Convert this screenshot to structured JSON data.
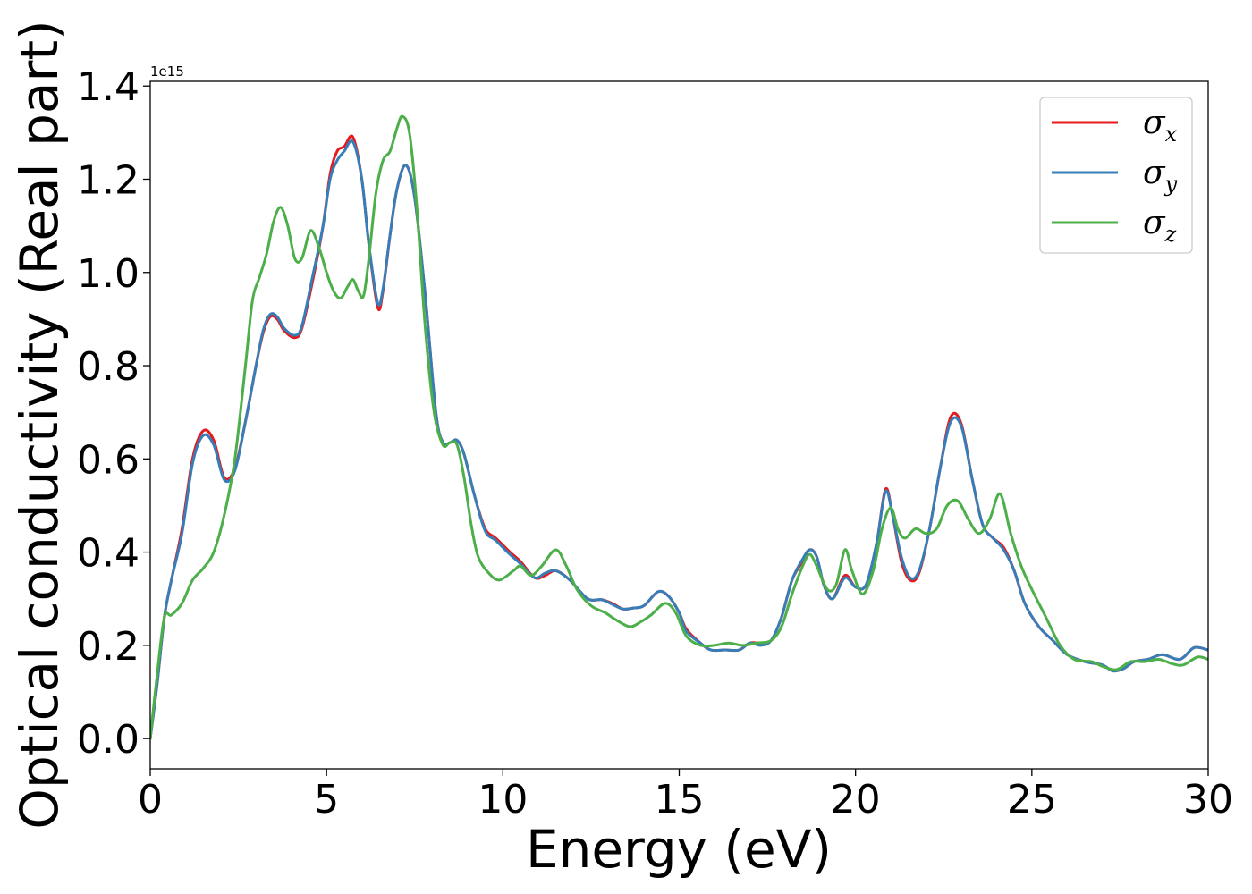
{
  "chart_data": {
    "type": "line",
    "xlabel": "Energy (eV)",
    "ylabel": "Optical conductivity (Real part)",
    "y_offset_text": "1e15",
    "xlim": [
      0,
      30
    ],
    "ylim": [
      -0.065,
      1.41
    ],
    "x_ticks": [
      0,
      5,
      10,
      15,
      20,
      25,
      30
    ],
    "y_ticks": [
      0.0,
      0.2,
      0.4,
      0.6,
      0.8,
      1.0,
      1.2,
      1.4
    ],
    "x_tick_labels": [
      "0",
      "5",
      "10",
      "15",
      "20",
      "25",
      "30"
    ],
    "y_tick_labels": [
      "0.0",
      "0.2",
      "0.4",
      "0.6",
      "0.8",
      "1.0",
      "1.2",
      "1.4"
    ],
    "legend_position": "upper right",
    "grid": false,
    "series": [
      {
        "name": "σx",
        "symbol": "σ",
        "sub": "x",
        "color": "#e41a1c",
        "points": [
          [
            0,
            0
          ],
          [
            0.2,
            0.12
          ],
          [
            0.4,
            0.26
          ],
          [
            0.6,
            0.34
          ],
          [
            0.9,
            0.45
          ],
          [
            1.2,
            0.6
          ],
          [
            1.5,
            0.66
          ],
          [
            1.8,
            0.64
          ],
          [
            2.1,
            0.56
          ],
          [
            2.4,
            0.58
          ],
          [
            2.7,
            0.68
          ],
          [
            3.0,
            0.8
          ],
          [
            3.2,
            0.87
          ],
          [
            3.4,
            0.905
          ],
          [
            3.6,
            0.9
          ],
          [
            3.8,
            0.875
          ],
          [
            4.1,
            0.86
          ],
          [
            4.3,
            0.88
          ],
          [
            4.6,
            0.98
          ],
          [
            4.9,
            1.1
          ],
          [
            5.1,
            1.21
          ],
          [
            5.3,
            1.26
          ],
          [
            5.5,
            1.27
          ],
          [
            5.75,
            1.29
          ],
          [
            6.0,
            1.2
          ],
          [
            6.2,
            1.06
          ],
          [
            6.45,
            0.925
          ],
          [
            6.6,
            0.96
          ],
          [
            6.8,
            1.08
          ],
          [
            7.0,
            1.18
          ],
          [
            7.25,
            1.23
          ],
          [
            7.5,
            1.16
          ],
          [
            7.8,
            0.95
          ],
          [
            8.1,
            0.7
          ],
          [
            8.3,
            0.635
          ],
          [
            8.5,
            0.635
          ],
          [
            8.7,
            0.64
          ],
          [
            8.9,
            0.61
          ],
          [
            9.2,
            0.52
          ],
          [
            9.5,
            0.45
          ],
          [
            9.8,
            0.43
          ],
          [
            10.2,
            0.4
          ],
          [
            10.5,
            0.38
          ],
          [
            10.9,
            0.345
          ],
          [
            11.2,
            0.35
          ],
          [
            11.5,
            0.36
          ],
          [
            11.9,
            0.34
          ],
          [
            12.4,
            0.3
          ],
          [
            12.8,
            0.298
          ],
          [
            13.1,
            0.29
          ],
          [
            13.4,
            0.278
          ],
          [
            13.7,
            0.28
          ],
          [
            14.0,
            0.285
          ],
          [
            14.4,
            0.315
          ],
          [
            14.7,
            0.305
          ],
          [
            15.0,
            0.27
          ],
          [
            15.2,
            0.235
          ],
          [
            15.6,
            0.205
          ],
          [
            15.9,
            0.19
          ],
          [
            16.3,
            0.19
          ],
          [
            16.7,
            0.19
          ],
          [
            17.0,
            0.205
          ],
          [
            17.3,
            0.205
          ],
          [
            17.6,
            0.21
          ],
          [
            17.9,
            0.26
          ],
          [
            18.2,
            0.34
          ],
          [
            18.5,
            0.38
          ],
          [
            18.7,
            0.405
          ],
          [
            18.9,
            0.39
          ],
          [
            19.1,
            0.33
          ],
          [
            19.35,
            0.3
          ],
          [
            19.7,
            0.35
          ],
          [
            20.0,
            0.325
          ],
          [
            20.3,
            0.33
          ],
          [
            20.6,
            0.42
          ],
          [
            20.85,
            0.535
          ],
          [
            21.05,
            0.48
          ],
          [
            21.3,
            0.38
          ],
          [
            21.55,
            0.34
          ],
          [
            21.8,
            0.355
          ],
          [
            22.1,
            0.45
          ],
          [
            22.4,
            0.58
          ],
          [
            22.7,
            0.69
          ],
          [
            23.0,
            0.675
          ],
          [
            23.3,
            0.56
          ],
          [
            23.6,
            0.46
          ],
          [
            23.9,
            0.43
          ],
          [
            24.2,
            0.41
          ],
          [
            24.5,
            0.36
          ],
          [
            24.8,
            0.29
          ],
          [
            25.2,
            0.24
          ],
          [
            25.6,
            0.21
          ],
          [
            26.0,
            0.18
          ],
          [
            26.5,
            0.165
          ],
          [
            27.0,
            0.158
          ],
          [
            27.3,
            0.145
          ],
          [
            27.6,
            0.15
          ],
          [
            27.9,
            0.165
          ],
          [
            28.3,
            0.17
          ],
          [
            28.7,
            0.18
          ],
          [
            29.2,
            0.17
          ],
          [
            29.6,
            0.195
          ],
          [
            30.0,
            0.19
          ]
        ]
      },
      {
        "name": "σy",
        "symbol": "σ",
        "sub": "y",
        "color": "#377eb8",
        "points": [
          [
            0,
            0
          ],
          [
            0.2,
            0.12
          ],
          [
            0.4,
            0.26
          ],
          [
            0.6,
            0.34
          ],
          [
            0.9,
            0.44
          ],
          [
            1.2,
            0.59
          ],
          [
            1.5,
            0.65
          ],
          [
            1.8,
            0.63
          ],
          [
            2.1,
            0.555
          ],
          [
            2.4,
            0.575
          ],
          [
            2.7,
            0.68
          ],
          [
            3.0,
            0.8
          ],
          [
            3.2,
            0.875
          ],
          [
            3.4,
            0.91
          ],
          [
            3.6,
            0.905
          ],
          [
            3.8,
            0.88
          ],
          [
            4.1,
            0.865
          ],
          [
            4.3,
            0.885
          ],
          [
            4.6,
            0.99
          ],
          [
            4.9,
            1.1
          ],
          [
            5.1,
            1.2
          ],
          [
            5.3,
            1.24
          ],
          [
            5.5,
            1.26
          ],
          [
            5.75,
            1.28
          ],
          [
            6.0,
            1.2
          ],
          [
            6.2,
            1.06
          ],
          [
            6.45,
            0.935
          ],
          [
            6.6,
            0.965
          ],
          [
            6.8,
            1.08
          ],
          [
            7.0,
            1.18
          ],
          [
            7.25,
            1.23
          ],
          [
            7.5,
            1.16
          ],
          [
            7.8,
            0.95
          ],
          [
            8.1,
            0.7
          ],
          [
            8.3,
            0.635
          ],
          [
            8.5,
            0.635
          ],
          [
            8.7,
            0.64
          ],
          [
            8.9,
            0.61
          ],
          [
            9.2,
            0.52
          ],
          [
            9.5,
            0.445
          ],
          [
            9.8,
            0.425
          ],
          [
            10.2,
            0.395
          ],
          [
            10.5,
            0.375
          ],
          [
            10.9,
            0.345
          ],
          [
            11.2,
            0.355
          ],
          [
            11.5,
            0.36
          ],
          [
            11.9,
            0.34
          ],
          [
            12.4,
            0.3
          ],
          [
            12.8,
            0.298
          ],
          [
            13.1,
            0.288
          ],
          [
            13.4,
            0.278
          ],
          [
            13.7,
            0.28
          ],
          [
            14.0,
            0.285
          ],
          [
            14.4,
            0.315
          ],
          [
            14.7,
            0.305
          ],
          [
            15.0,
            0.27
          ],
          [
            15.2,
            0.23
          ],
          [
            15.6,
            0.205
          ],
          [
            15.9,
            0.19
          ],
          [
            16.3,
            0.19
          ],
          [
            16.7,
            0.19
          ],
          [
            17.0,
            0.205
          ],
          [
            17.3,
            0.2
          ],
          [
            17.6,
            0.21
          ],
          [
            17.9,
            0.26
          ],
          [
            18.2,
            0.34
          ],
          [
            18.5,
            0.385
          ],
          [
            18.7,
            0.405
          ],
          [
            18.9,
            0.39
          ],
          [
            19.1,
            0.33
          ],
          [
            19.35,
            0.3
          ],
          [
            19.7,
            0.345
          ],
          [
            20.0,
            0.325
          ],
          [
            20.3,
            0.33
          ],
          [
            20.6,
            0.42
          ],
          [
            20.85,
            0.53
          ],
          [
            21.05,
            0.48
          ],
          [
            21.3,
            0.39
          ],
          [
            21.55,
            0.345
          ],
          [
            21.8,
            0.36
          ],
          [
            22.1,
            0.45
          ],
          [
            22.4,
            0.58
          ],
          [
            22.7,
            0.68
          ],
          [
            23.0,
            0.67
          ],
          [
            23.3,
            0.56
          ],
          [
            23.6,
            0.46
          ],
          [
            23.9,
            0.43
          ],
          [
            24.2,
            0.405
          ],
          [
            24.5,
            0.36
          ],
          [
            24.8,
            0.29
          ],
          [
            25.2,
            0.24
          ],
          [
            25.6,
            0.21
          ],
          [
            26.0,
            0.18
          ],
          [
            26.5,
            0.165
          ],
          [
            27.0,
            0.158
          ],
          [
            27.3,
            0.145
          ],
          [
            27.6,
            0.15
          ],
          [
            27.9,
            0.165
          ],
          [
            28.3,
            0.17
          ],
          [
            28.7,
            0.18
          ],
          [
            29.2,
            0.17
          ],
          [
            29.6,
            0.195
          ],
          [
            30.0,
            0.19
          ]
        ]
      },
      {
        "name": "σz",
        "symbol": "σ",
        "sub": "z",
        "color": "#4daf4a",
        "points": [
          [
            0,
            0
          ],
          [
            0.2,
            0.14
          ],
          [
            0.4,
            0.26
          ],
          [
            0.6,
            0.265
          ],
          [
            0.9,
            0.29
          ],
          [
            1.2,
            0.34
          ],
          [
            1.5,
            0.365
          ],
          [
            1.8,
            0.4
          ],
          [
            2.1,
            0.48
          ],
          [
            2.4,
            0.6
          ],
          [
            2.7,
            0.8
          ],
          [
            2.9,
            0.94
          ],
          [
            3.1,
            0.99
          ],
          [
            3.3,
            1.04
          ],
          [
            3.5,
            1.11
          ],
          [
            3.7,
            1.14
          ],
          [
            3.9,
            1.1
          ],
          [
            4.1,
            1.03
          ],
          [
            4.3,
            1.03
          ],
          [
            4.55,
            1.09
          ],
          [
            4.8,
            1.05
          ],
          [
            5.0,
            1.0
          ],
          [
            5.2,
            0.96
          ],
          [
            5.4,
            0.945
          ],
          [
            5.6,
            0.97
          ],
          [
            5.75,
            0.985
          ],
          [
            5.9,
            0.96
          ],
          [
            6.05,
            0.95
          ],
          [
            6.2,
            1.03
          ],
          [
            6.4,
            1.17
          ],
          [
            6.6,
            1.24
          ],
          [
            6.8,
            1.26
          ],
          [
            7.0,
            1.31
          ],
          [
            7.15,
            1.335
          ],
          [
            7.35,
            1.3
          ],
          [
            7.55,
            1.15
          ],
          [
            7.8,
            0.88
          ],
          [
            8.05,
            0.7
          ],
          [
            8.3,
            0.63
          ],
          [
            8.5,
            0.635
          ],
          [
            8.7,
            0.63
          ],
          [
            8.9,
            0.56
          ],
          [
            9.1,
            0.46
          ],
          [
            9.3,
            0.39
          ],
          [
            9.6,
            0.355
          ],
          [
            9.9,
            0.34
          ],
          [
            10.3,
            0.36
          ],
          [
            10.5,
            0.37
          ],
          [
            10.8,
            0.35
          ],
          [
            11.1,
            0.37
          ],
          [
            11.5,
            0.405
          ],
          [
            11.8,
            0.37
          ],
          [
            12.1,
            0.32
          ],
          [
            12.5,
            0.285
          ],
          [
            12.9,
            0.27
          ],
          [
            13.2,
            0.255
          ],
          [
            13.6,
            0.24
          ],
          [
            13.9,
            0.25
          ],
          [
            14.2,
            0.265
          ],
          [
            14.6,
            0.29
          ],
          [
            14.9,
            0.27
          ],
          [
            15.2,
            0.22
          ],
          [
            15.6,
            0.2
          ],
          [
            16.0,
            0.2
          ],
          [
            16.4,
            0.205
          ],
          [
            16.8,
            0.2
          ],
          [
            17.2,
            0.205
          ],
          [
            17.6,
            0.21
          ],
          [
            17.9,
            0.24
          ],
          [
            18.2,
            0.31
          ],
          [
            18.5,
            0.37
          ],
          [
            18.7,
            0.395
          ],
          [
            18.9,
            0.37
          ],
          [
            19.2,
            0.32
          ],
          [
            19.45,
            0.33
          ],
          [
            19.7,
            0.405
          ],
          [
            19.9,
            0.36
          ],
          [
            20.2,
            0.31
          ],
          [
            20.5,
            0.36
          ],
          [
            20.75,
            0.45
          ],
          [
            21.0,
            0.495
          ],
          [
            21.2,
            0.45
          ],
          [
            21.4,
            0.43
          ],
          [
            21.7,
            0.45
          ],
          [
            22.0,
            0.44
          ],
          [
            22.3,
            0.45
          ],
          [
            22.6,
            0.5
          ],
          [
            22.9,
            0.51
          ],
          [
            23.2,
            0.47
          ],
          [
            23.5,
            0.44
          ],
          [
            23.8,
            0.47
          ],
          [
            24.1,
            0.525
          ],
          [
            24.4,
            0.44
          ],
          [
            24.7,
            0.37
          ],
          [
            25.0,
            0.32
          ],
          [
            25.4,
            0.26
          ],
          [
            25.8,
            0.2
          ],
          [
            26.2,
            0.17
          ],
          [
            26.7,
            0.165
          ],
          [
            27.0,
            0.155
          ],
          [
            27.4,
            0.148
          ],
          [
            27.8,
            0.165
          ],
          [
            28.2,
            0.165
          ],
          [
            28.6,
            0.17
          ],
          [
            29.0,
            0.16
          ],
          [
            29.3,
            0.158
          ],
          [
            29.7,
            0.175
          ],
          [
            30.0,
            0.17
          ]
        ]
      }
    ]
  }
}
